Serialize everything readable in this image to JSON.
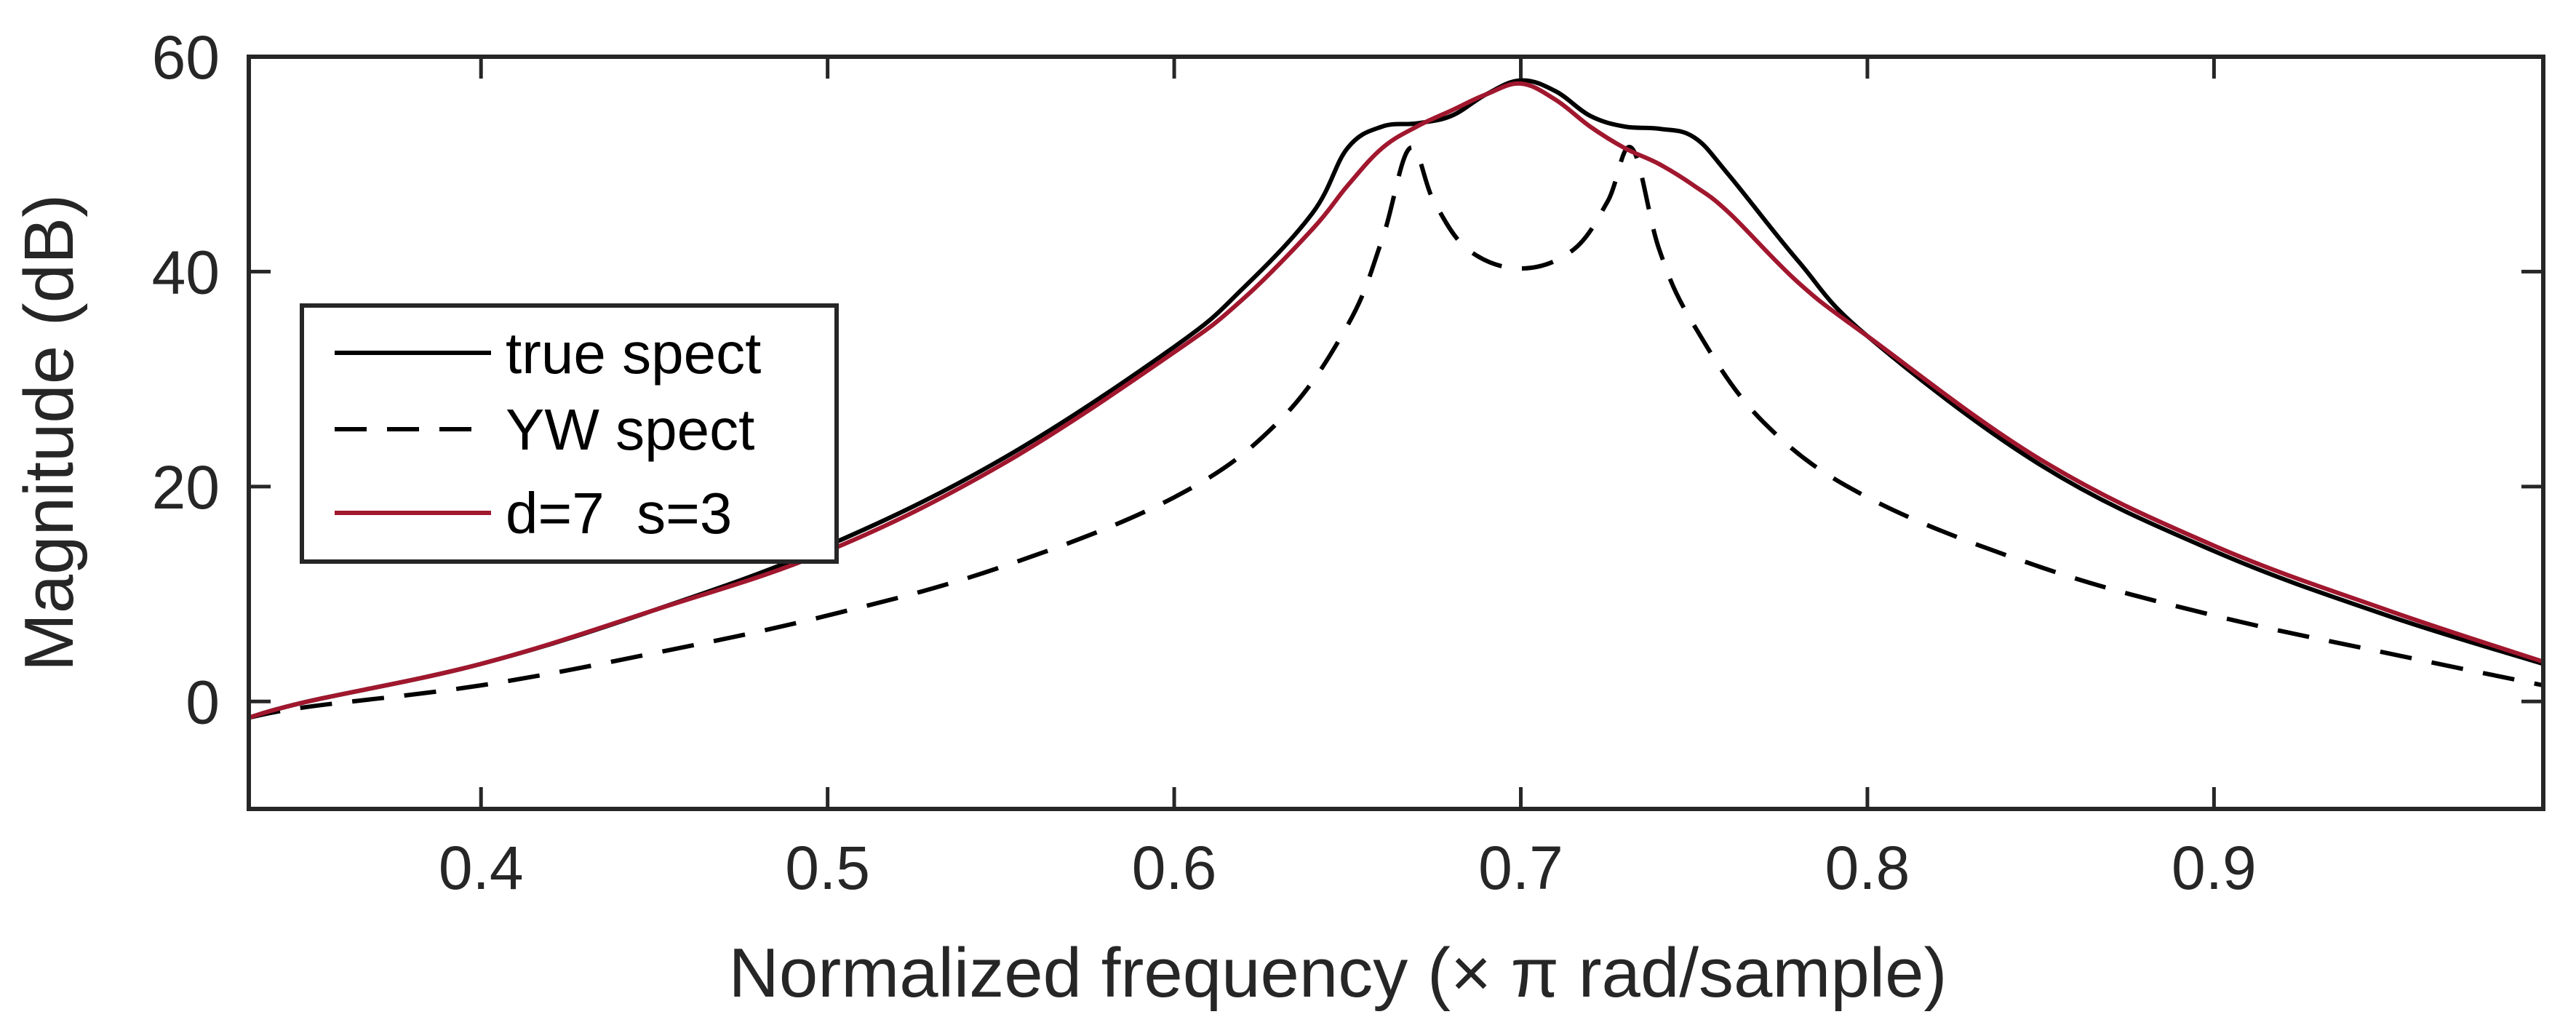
{
  "chart_data": {
    "type": "line",
    "xlabel": "Normalized frequency (× π rad/sample)",
    "ylabel": "Magnitude (dB)",
    "xlim": [
      0.333,
      0.995
    ],
    "ylim": [
      -10,
      60
    ],
    "x_ticks": [
      0.4,
      0.5,
      0.6,
      0.7,
      0.8,
      0.9
    ],
    "x_tick_labels": [
      "0.4",
      "0.5",
      "0.6",
      "0.7",
      "0.8",
      "0.9"
    ],
    "y_ticks": [
      0,
      20,
      40,
      60
    ],
    "y_tick_labels": [
      "0",
      "20",
      "40",
      "60"
    ],
    "grid": false,
    "legend_position": "left",
    "series": [
      {
        "name": "true spect",
        "color": "#000000",
        "dash": "solid",
        "x": [
          0.333,
          0.35,
          0.4,
          0.45,
          0.5,
          0.55,
          0.6,
          0.62,
          0.64,
          0.65,
          0.66,
          0.67,
          0.68,
          0.69,
          0.7,
          0.71,
          0.72,
          0.73,
          0.74,
          0.75,
          0.76,
          0.78,
          0.8,
          0.85,
          0.9,
          0.95,
          0.995
        ],
        "y": [
          -1.5,
          0,
          3.5,
          8.5,
          14.5,
          22.5,
          33,
          38.5,
          45.5,
          51.5,
          53.5,
          53.8,
          54.5,
          56.5,
          57.8,
          56.8,
          54.5,
          53.5,
          53.3,
          52.5,
          49,
          41,
          34,
          22,
          14,
          8,
          3.5
        ]
      },
      {
        "name": "YW spect",
        "color": "#000000",
        "dash": "dashed",
        "x": [
          0.333,
          0.35,
          0.4,
          0.45,
          0.5,
          0.55,
          0.6,
          0.63,
          0.65,
          0.66,
          0.668,
          0.675,
          0.685,
          0.7,
          0.715,
          0.725,
          0.732,
          0.74,
          0.75,
          0.77,
          0.8,
          0.85,
          0.9,
          0.95,
          0.995
        ],
        "y": [
          -1.5,
          -0.5,
          1.5,
          4.5,
          8,
          12.5,
          19,
          26,
          35,
          43,
          51.5,
          46.5,
          42,
          40.3,
          42,
          46.5,
          51.5,
          42,
          35,
          26,
          19,
          12.5,
          8,
          4.5,
          1.5
        ]
      },
      {
        "name": "d=7  s=3",
        "color": "#a0172e",
        "dash": "solid",
        "x": [
          0.333,
          0.35,
          0.4,
          0.45,
          0.5,
          0.55,
          0.6,
          0.62,
          0.64,
          0.65,
          0.66,
          0.67,
          0.68,
          0.69,
          0.7,
          0.71,
          0.72,
          0.73,
          0.74,
          0.75,
          0.76,
          0.78,
          0.8,
          0.85,
          0.9,
          0.95,
          0.995
        ],
        "y": [
          -1.5,
          0,
          3.5,
          8.5,
          14,
          22,
          32.5,
          37.5,
          44,
          48,
          51.5,
          53.5,
          55,
          56.5,
          57.5,
          56,
          53.5,
          51.5,
          50,
          48,
          45.5,
          39,
          34,
          22.5,
          14.5,
          8.5,
          3.7
        ]
      }
    ]
  }
}
